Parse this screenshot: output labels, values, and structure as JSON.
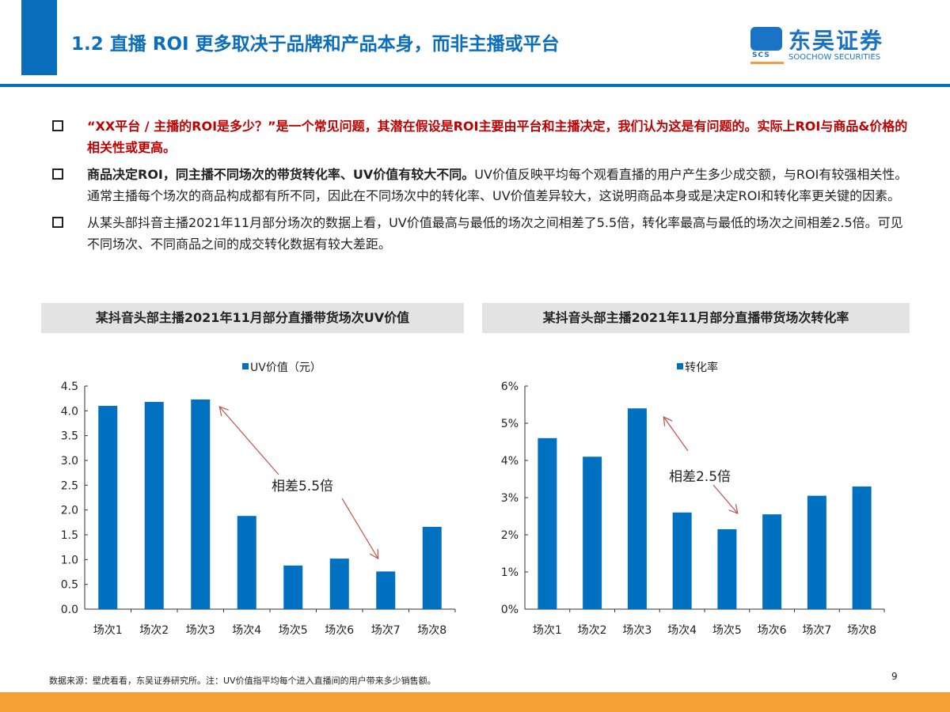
{
  "header": {
    "title": "1.2 直播 ROI 更多取决于品牌和产品本身，而非主播或平台",
    "logo_cn": "东吴证券",
    "logo_en": "SOOCHOW SECURITIES",
    "logo_mark": "SCS"
  },
  "bullets": [
    {
      "red": "“XX平台 / 主播的ROI是多少？”是一个常见问题，其潜在假设是ROI主要由平台和主播决定，我们认为这是有问题的。实际上ROI与商品&价格的相关性或更高。",
      "bold": "",
      "text": ""
    },
    {
      "red": "",
      "bold": "商品决定ROI，同主播不同场次的带货转化率、UV价值有较大不同。",
      "text": "UV价值反映平均每个观看直播的用户产生多少成交额，与ROI有较强相关性。通常主播每个场次的商品构成都有所不同，因此在不同场次中的转化率、UV价值差异较大，这说明商品本身或是决定ROI和转化率更关键的因素。"
    },
    {
      "red": "",
      "bold": "",
      "text": "从某头部抖音主播2021年11月部分场次的数据上看，UV价值最高与最低的场次之间相差了5.5倍，转化率最高与最低的场次之间相差2.5倍。可见不同场次、不同商品之间的成交转化数据有较大差距。"
    }
  ],
  "chart_data": [
    {
      "type": "bar",
      "title": "某抖音头部主播2021年11月部分直播带货场次UV价值",
      "categories": [
        "场次1",
        "场次2",
        "场次3",
        "场次4",
        "场次5",
        "场次6",
        "场次7",
        "场次8"
      ],
      "series": [
        {
          "name": "UV价值（元）",
          "values": [
            4.1,
            4.18,
            4.23,
            1.88,
            0.88,
            1.02,
            0.76,
            1.66
          ]
        }
      ],
      "ylim": [
        0,
        4.5
      ],
      "yticks": [
        "0.0",
        "0.5",
        "1.0",
        "1.5",
        "2.0",
        "2.5",
        "3.0",
        "3.5",
        "4.0",
        "4.5"
      ],
      "tickstep": 0.5,
      "legend": "top",
      "grid": false,
      "annotation": "相差5.5倍",
      "color": "#0070c0"
    },
    {
      "type": "bar",
      "title": "某抖音头部主播2021年11月部分直播带货场次转化率",
      "categories": [
        "场次1",
        "场次2",
        "场次3",
        "场次4",
        "场次5",
        "场次6",
        "场次7",
        "场次8"
      ],
      "series": [
        {
          "name": "转化率",
          "values": [
            4.6,
            4.1,
            5.4,
            2.6,
            2.15,
            2.55,
            3.05,
            3.3
          ]
        }
      ],
      "ylim": [
        0,
        6
      ],
      "yticks": [
        "0%",
        "1%",
        "2%",
        "3%",
        "4%",
        "5%",
        "6%"
      ],
      "tickstep": 1,
      "legend": "top",
      "grid": false,
      "annotation": "相差2.5倍",
      "color": "#0070c0"
    }
  ],
  "footer": {
    "source": "数据来源：壁虎看看，东吴证券研究所。注：UV价值指平均每个进入直播间的用户带来多少销售额。",
    "page": "9"
  }
}
